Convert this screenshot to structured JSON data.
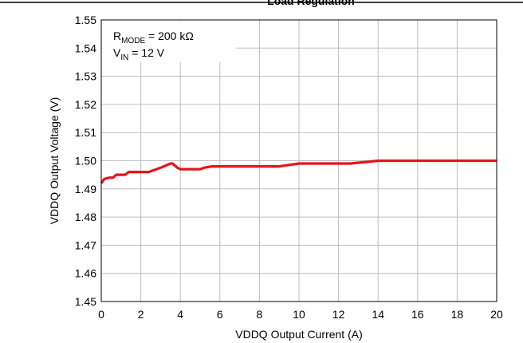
{
  "chart_data": {
    "type": "line",
    "title": "Load Regulation",
    "clipped_title_fragment": "g                    g        p         y",
    "xlabel": "VDDQ Output Current (A)",
    "ylabel": "VDDQ Output Voltage (V)",
    "xlim": [
      0,
      20
    ],
    "ylim": [
      1.45,
      1.55
    ],
    "x_ticks": [
      0,
      2,
      4,
      6,
      8,
      10,
      12,
      14,
      16,
      18,
      20
    ],
    "x_tick_labels": [
      "0",
      "2",
      "4",
      "6",
      "8",
      "10",
      "12",
      "14",
      "16",
      "18",
      "20"
    ],
    "y_ticks": [
      1.45,
      1.46,
      1.47,
      1.48,
      1.49,
      1.5,
      1.51,
      1.52,
      1.53,
      1.54,
      1.55
    ],
    "y_tick_labels": [
      "1.45",
      "1.46",
      "1.47",
      "1.48",
      "1.49",
      "1.50",
      "1.51",
      "1.52",
      "1.53",
      "1.54",
      "1.55"
    ],
    "grid": true,
    "annotation": {
      "line1_main": "R",
      "line1_sub": "MODE",
      "line1_rest": " = 200 kΩ",
      "line2_main": "V",
      "line2_sub": "IN",
      "line2_rest": " = 12 V"
    },
    "series": [
      {
        "color": "#e8141b",
        "x": [
          0,
          0.15,
          0.4,
          0.6,
          0.75,
          1.2,
          1.4,
          1.6,
          2.4,
          2.6,
          3.0,
          3.5,
          3.6,
          3.85,
          4.0,
          4.3,
          5.0,
          5.2,
          5.6,
          6.0,
          9.0,
          10.0,
          12.6,
          14.0,
          20.0
        ],
        "y": [
          1.492,
          1.4935,
          1.494,
          1.494,
          1.495,
          1.495,
          1.496,
          1.496,
          1.496,
          1.4965,
          1.4975,
          1.499,
          1.499,
          1.4975,
          1.497,
          1.497,
          1.497,
          1.4975,
          1.498,
          1.498,
          1.498,
          1.499,
          1.499,
          1.5,
          1.5
        ]
      }
    ]
  }
}
